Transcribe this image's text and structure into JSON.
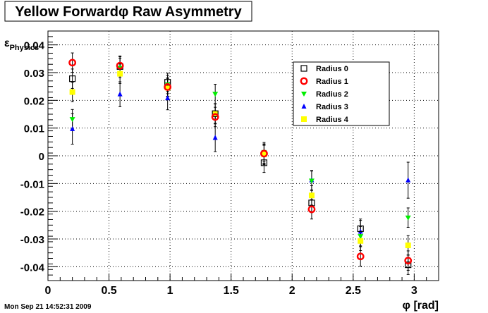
{
  "title": "Yellow Forwardφ Raw Asymmetry",
  "timestamp": "Mon Sep 21 14:52:31 2009",
  "ylabel": {
    "main": "ε",
    "sub": "Physics"
  },
  "xlabel": "φ [rad]",
  "chart_data": {
    "type": "scatter",
    "title": "Yellow Forwardφ Raw Asymmetry",
    "xlabel": "φ [rad]",
    "ylabel": "εPhysics",
    "xlim": [
      0,
      3.2
    ],
    "ylim": [
      -0.045,
      0.045
    ],
    "x_ticks": [
      "0",
      "0.5",
      "1",
      "1.5",
      "2",
      "2.5",
      "3"
    ],
    "y_ticks": [
      "0.04",
      "0.03",
      "0.02",
      "0.01",
      "0",
      "-0.01",
      "-0.02",
      "-0.03",
      "-0.04"
    ],
    "grid": true,
    "legend_position": "top-right",
    "series": [
      {
        "name": "Radius 0",
        "marker": "open-square",
        "color": "#000000",
        "x": [
          0.2,
          0.59,
          0.98,
          1.37,
          1.77,
          2.16,
          2.56,
          2.95
        ],
        "y": [
          0.0278,
          0.0322,
          0.0265,
          0.0152,
          -0.0025,
          -0.017,
          -0.0263,
          -0.0393
        ],
        "err": [
          0.0035,
          0.0035,
          0.0033,
          0.0035,
          0.0035,
          0.0035,
          0.0035,
          0.0035
        ]
      },
      {
        "name": "Radius 1",
        "marker": "open-circle",
        "color": "#ff0000",
        "x": [
          0.2,
          0.59,
          0.98,
          1.37,
          1.77,
          2.16,
          2.56,
          2.95
        ],
        "y": [
          0.0336,
          0.0325,
          0.0248,
          0.014,
          0.0008,
          -0.0193,
          -0.0363,
          -0.0378
        ],
        "err": [
          0.0035,
          0.0035,
          0.0033,
          0.0035,
          0.0035,
          0.0035,
          0.0035,
          0.0035
        ]
      },
      {
        "name": "Radius 2",
        "marker": "triangle-down",
        "color": "#00ee00",
        "x": [
          0.2,
          0.59,
          0.98,
          1.37,
          1.77,
          2.16,
          2.56,
          2.95
        ],
        "y": [
          0.0132,
          0.0317,
          0.0257,
          0.0223,
          0.0013,
          -0.009,
          -0.029,
          -0.0223
        ],
        "err": [
          0.0035,
          0.0035,
          0.0033,
          0.0035,
          0.0035,
          0.0035,
          0.0035,
          0.0035
        ]
      },
      {
        "name": "Radius 3",
        "marker": "triangle-up",
        "color": "#0000ff",
        "x": [
          0.2,
          0.59,
          0.98,
          1.37,
          1.77,
          2.16,
          2.56,
          2.95
        ],
        "y": [
          0.0097,
          0.0222,
          0.0208,
          0.0065,
          0.0003,
          -0.0088,
          -0.0273,
          -0.0088
        ],
        "err": [
          0.0055,
          0.0045,
          0.0042,
          0.005,
          0.0035,
          0.0035,
          0.004,
          0.0065
        ]
      },
      {
        "name": "Radius 4",
        "marker": "filled-square",
        "color": "#ffff00",
        "x": [
          0.2,
          0.59,
          0.98,
          1.37,
          1.77,
          2.16,
          2.56,
          2.95
        ],
        "y": [
          0.023,
          0.0296,
          0.0246,
          0.0152,
          0.0005,
          -0.0143,
          -0.0307,
          -0.0323
        ],
        "err": [
          0.0035,
          0.0035,
          0.0033,
          0.0035,
          0.0035,
          0.0035,
          0.0035,
          0.0035
        ]
      }
    ]
  }
}
